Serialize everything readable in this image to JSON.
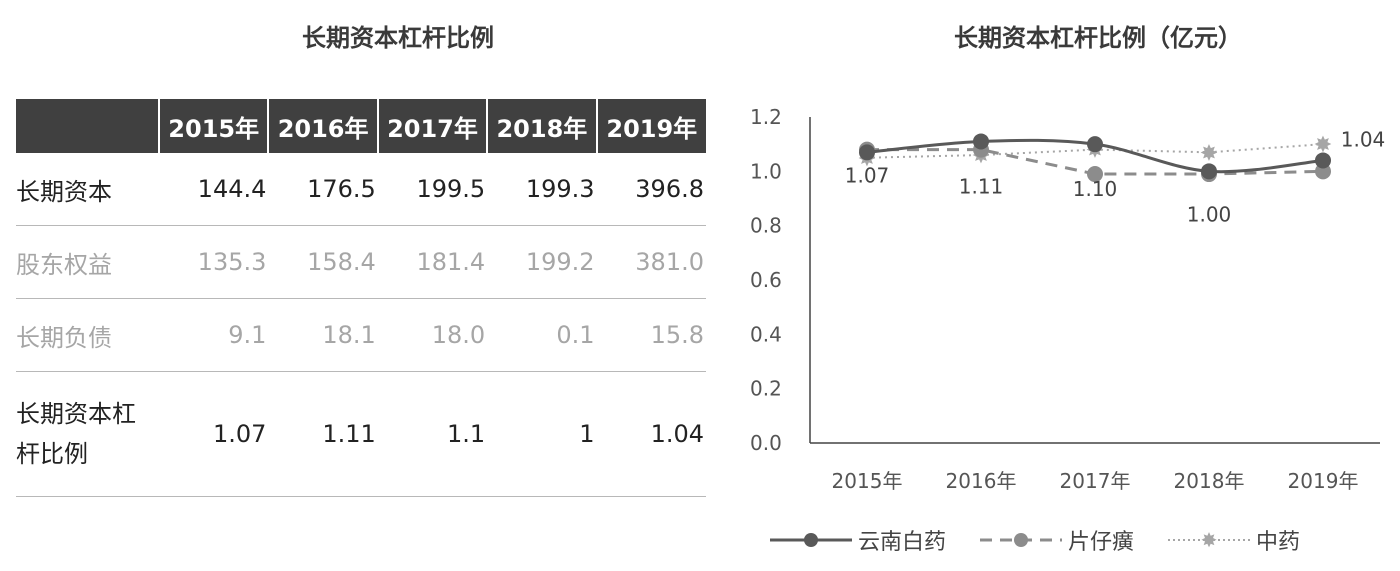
{
  "left_title": "长期资本杠杆比例",
  "right_title": "长期资本杠杆比例（亿元）",
  "table": {
    "header": [
      "",
      "2015年",
      "2016年",
      "2017年",
      "2018年",
      "2019年"
    ],
    "rows": [
      {
        "label": "长期资本",
        "values": [
          "144.4",
          "176.5",
          "199.5",
          "199.3",
          "396.8"
        ]
      },
      {
        "label": "股东权益",
        "values": [
          "135.3",
          "158.4",
          "181.4",
          "199.2",
          "381.0"
        ]
      },
      {
        "label": "长期负债",
        "values": [
          "9.1",
          "18.1",
          "18.0",
          "0.1",
          "15.8"
        ]
      },
      {
        "label_line1": "长期资本杠",
        "label_line2": "杆比例",
        "values": [
          "1.07",
          "1.11",
          "1.1",
          "1",
          "1.04"
        ]
      }
    ]
  },
  "chart_data": {
    "type": "line",
    "categories": [
      "2015年",
      "2016年",
      "2017年",
      "2018年",
      "2019年"
    ],
    "ylim": [
      0,
      1.2
    ],
    "yticks": [
      "0.0",
      "0.2",
      "0.4",
      "0.6",
      "0.8",
      "1.0",
      "1.2"
    ],
    "series": [
      {
        "name": "云南白药",
        "values": [
          1.07,
          1.11,
          1.1,
          1.0,
          1.04
        ],
        "color": "#595959",
        "style": "solid",
        "marker": "circle"
      },
      {
        "name": "片仔癀",
        "values": [
          1.08,
          1.08,
          0.99,
          0.99,
          1.0
        ],
        "color": "#8c8c8c",
        "style": "dashed",
        "marker": "circle"
      },
      {
        "name": "中药",
        "values": [
          1.05,
          1.06,
          1.08,
          1.07,
          1.1
        ],
        "color": "#a6a6a6",
        "style": "dotted",
        "marker": "star"
      }
    ],
    "data_labels": [
      "1.07",
      "1.11",
      "1.10",
      "1.00",
      "1.04"
    ],
    "grid": false,
    "legend": "bottom"
  }
}
